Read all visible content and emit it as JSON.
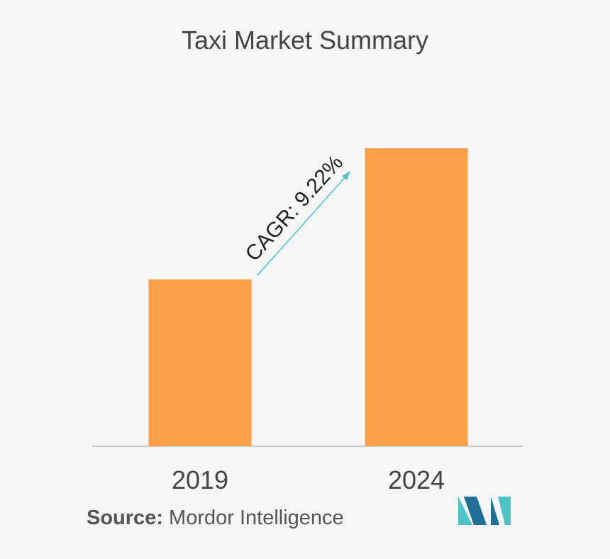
{
  "title": "Taxi Market Summary",
  "source": {
    "label": "Source:",
    "text": "Mordor Intelligence"
  },
  "annotation": {
    "text": "CAGR: 9.22%",
    "color": "#4cc3c6"
  },
  "colors": {
    "bar": "#fea04a",
    "axis": "#cccccc",
    "tick_text": "#444444",
    "logo_dark": "#1f6f9a",
    "logo_light": "#4cc3c6"
  },
  "chart_data": {
    "type": "bar",
    "categories": [
      "2019",
      "2024"
    ],
    "values": [
      56,
      100
    ],
    "ylim": [
      0,
      100
    ],
    "grid": false,
    "legend": "none",
    "annotation": "CAGR: 9.22%"
  }
}
